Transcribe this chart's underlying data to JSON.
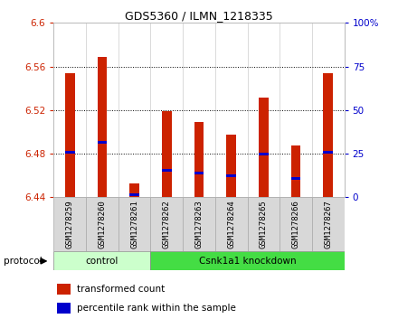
{
  "title": "GDS5360 / ILMN_1218335",
  "samples": [
    "GSM1278259",
    "GSM1278260",
    "GSM1278261",
    "GSM1278262",
    "GSM1278263",
    "GSM1278264",
    "GSM1278265",
    "GSM1278266",
    "GSM1278267"
  ],
  "bar_tops": [
    6.554,
    6.569,
    6.452,
    6.519,
    6.509,
    6.497,
    6.531,
    6.487,
    6.554
  ],
  "bar_bottom": 6.44,
  "percentile_values": [
    6.481,
    6.49,
    6.442,
    6.464,
    6.462,
    6.459,
    6.479,
    6.457,
    6.481
  ],
  "ylim": [
    6.44,
    6.6
  ],
  "yticks_left": [
    6.44,
    6.48,
    6.52,
    6.56,
    6.6
  ],
  "yticks_right": [
    0,
    25,
    50,
    75,
    100
  ],
  "bar_color": "#cc2200",
  "percentile_color": "#0000cc",
  "control_label": "control",
  "knockdown_label": "Csnk1a1 knockdown",
  "protocol_label": "protocol",
  "n_control": 3,
  "legend_items": [
    "transformed count",
    "percentile rank within the sample"
  ],
  "panel_bg": "#ffffff",
  "fig_bg": "#ffffff",
  "sample_bg": "#d8d8d8",
  "group_bg_light": "#ccffcc",
  "group_bg_dark": "#44dd44"
}
